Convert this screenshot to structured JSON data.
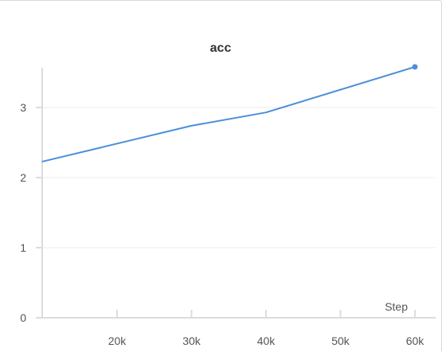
{
  "chart_data": {
    "type": "line",
    "title": "acc",
    "xlabel": "Step",
    "ylabel": "",
    "xlim": [
      0,
      60000
    ],
    "ylim": [
      0,
      3.6
    ],
    "x_ticks": [
      20000,
      30000,
      40000,
      50000,
      60000
    ],
    "x_tick_labels": [
      "20k",
      "30k",
      "40k",
      "50k",
      "60k"
    ],
    "y_ticks": [
      0,
      1,
      2,
      3
    ],
    "y_tick_labels": [
      "0",
      "1",
      "2",
      "3"
    ],
    "grid": true,
    "series": [
      {
        "x": [
          10000,
          30000,
          40000,
          60000
        ],
        "y": [
          2.23,
          2.74,
          2.93,
          3.58
        ],
        "color": "#4a90d9"
      }
    ]
  }
}
